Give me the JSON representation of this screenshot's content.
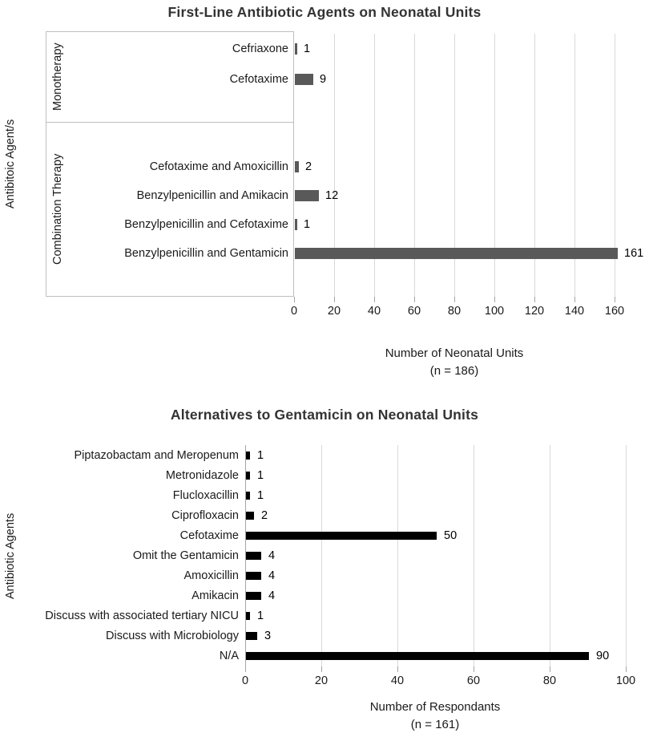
{
  "chart_data": [
    {
      "type": "bar",
      "orientation": "horizontal",
      "title": "First-Line Antibiotic Agents on Neonatal Units",
      "ylabel": "Antibitoic Agent/s",
      "xlabel": "Number of Neonatal Units",
      "xlabel_note": "(n = 186)",
      "groups": [
        {
          "name": "Monotherapy",
          "rows": [
            {
              "category": "Cefriaxone",
              "value": 1
            },
            {
              "category": "Cefotaxime",
              "value": 9
            }
          ]
        },
        {
          "name": "Combination Therapy",
          "rows": [
            {
              "category": "Cefotaxime and Amoxicillin",
              "value": 2
            },
            {
              "category": "Benzylpenicillin and Amikacin",
              "value": 12
            },
            {
              "category": "Benzylpenicillin and Cefotaxime",
              "value": 1
            },
            {
              "category": "Benzylpenicillin and Gentamicin",
              "value": 161
            }
          ]
        }
      ],
      "xlim": [
        0,
        160
      ],
      "xticks": [
        0,
        20,
        40,
        60,
        80,
        100,
        120,
        140,
        160
      ],
      "bar_color": "#595959",
      "gridline_color": "#d9d9d9",
      "grid": true,
      "legend": "none"
    },
    {
      "type": "bar",
      "orientation": "horizontal",
      "title": "Alternatives to Gentamicin on Neonatal Units",
      "ylabel": "Antibiotic Agents",
      "xlabel": "Number of Respondants",
      "xlabel_note": "(n = 161)",
      "categories": [
        "Piptazobactam and Meropenum",
        "Metronidazole",
        "Flucloxacillin",
        "Ciprofloxacin",
        "Cefotaxime",
        "Omit the Gentamicin",
        "Amoxicillin",
        "Amikacin",
        "Discuss with associated tertiary NICU",
        "Discuss with Microbiology",
        "N/A"
      ],
      "values": [
        1,
        1,
        1,
        2,
        50,
        4,
        4,
        4,
        1,
        3,
        90
      ],
      "xlim": [
        0,
        100
      ],
      "xticks": [
        0,
        20,
        40,
        60,
        80,
        100
      ],
      "bar_color": "#000000",
      "gridline_color": "#d9d9d9",
      "grid": true,
      "legend": "none"
    }
  ]
}
